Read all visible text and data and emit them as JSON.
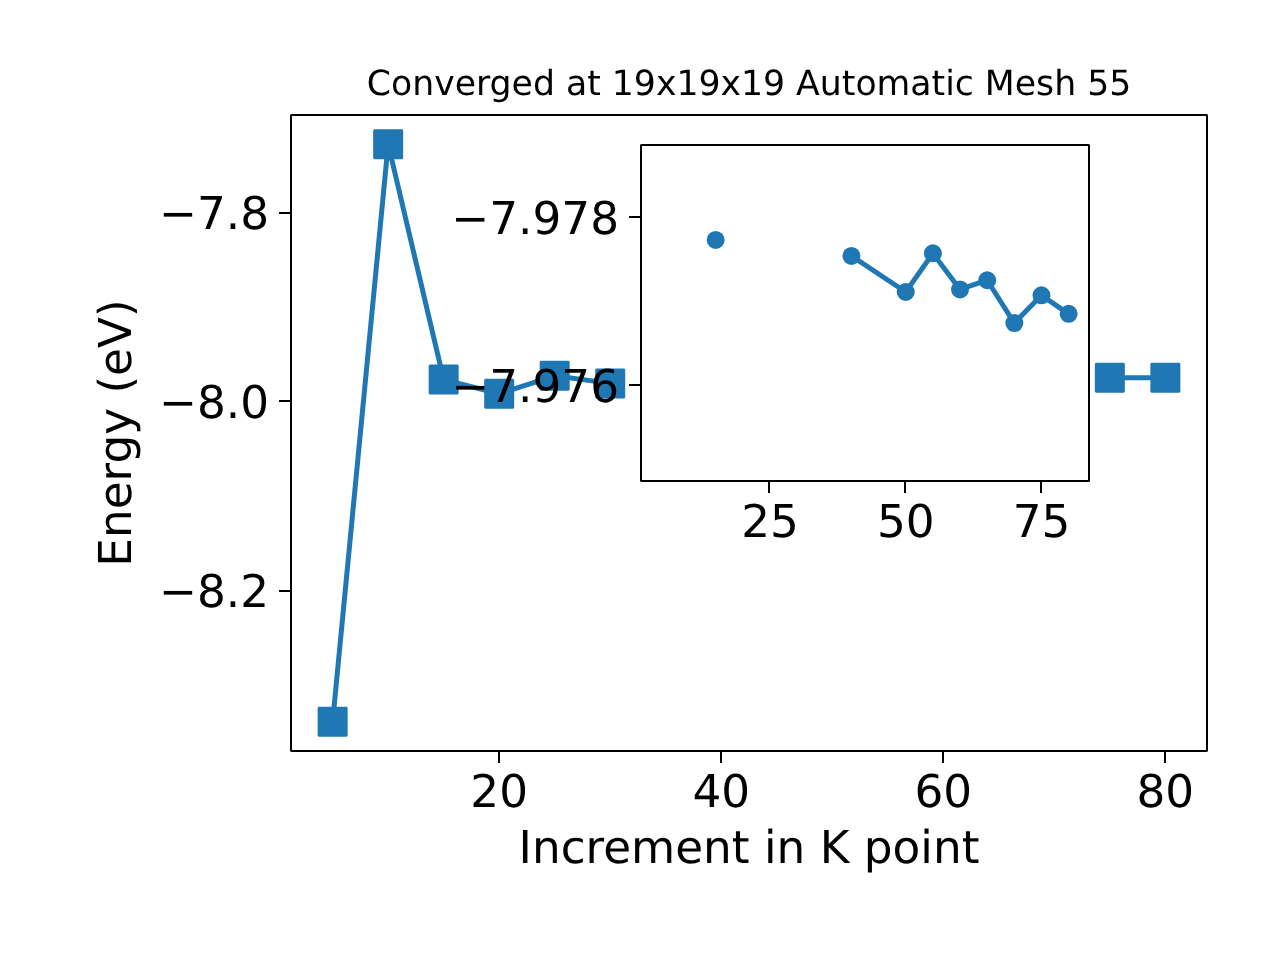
{
  "chart_data": [
    {
      "type": "line",
      "title": "Converged at 19x19x19 Automatic Mesh 55",
      "xlabel": "Increment in K point",
      "ylabel": "Energy (eV)",
      "marker": "square",
      "x": [
        5,
        10,
        15,
        20,
        25,
        30,
        35,
        40,
        45,
        50,
        55,
        60,
        65,
        70,
        75,
        80
      ],
      "series": [
        {
          "color": "#1f77b4",
          "values": [
            -8.339,
            -7.728,
            -7.977,
            -7.992,
            -7.973,
            -7.981,
            null,
            null,
            null,
            null,
            null,
            null,
            null,
            null,
            -7.975,
            -7.975
          ]
        }
      ],
      "xlim": [
        1.25,
        83.75
      ],
      "ylim": [
        -8.37,
        -7.697
      ],
      "xticks": [
        20,
        40,
        60,
        80
      ],
      "yticks": [
        {
          "value": -8.2,
          "label": "−8.2"
        },
        {
          "value": -8.0,
          "label": "−8.0"
        },
        {
          "value": -7.8,
          "label": "−7.8"
        }
      ]
    },
    {
      "type": "line",
      "marker": "circle",
      "x": [
        15,
        20,
        25,
        30,
        35,
        40,
        50,
        55,
        60,
        65,
        70,
        75,
        80
      ],
      "series": [
        {
          "color": "#1f77b4",
          "values": [
            -7.97773,
            null,
            null,
            null,
            null,
            -7.97754,
            -7.97711,
            -7.97757,
            -7.97714,
            -7.97725,
            -7.97674,
            -7.97707,
            -7.97685
          ]
        }
      ],
      "xlim": [
        1.25,
        83.75
      ],
      "ylim": [
        -7.97486,
        -7.97886
      ],
      "xticks": [
        25,
        50,
        75
      ],
      "yticks": [
        {
          "value": -7.978,
          "label": "−7.978"
        },
        {
          "value": -7.976,
          "label": "−7.976"
        }
      ]
    }
  ]
}
